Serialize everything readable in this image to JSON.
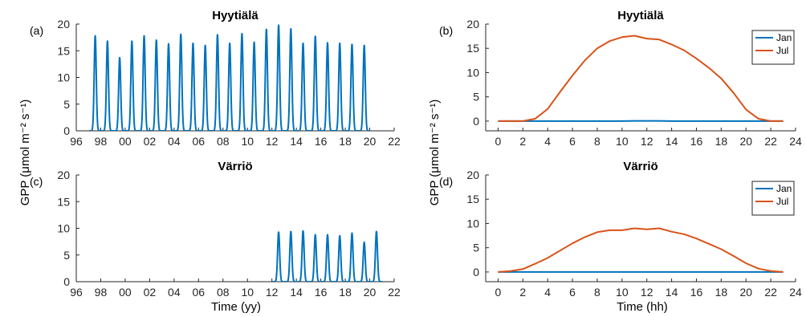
{
  "figure": {
    "ylabel_left": "GPP (μmol m⁻² s⁻¹)",
    "ylabel_right": "GPP (μmol m⁻² s⁻¹)",
    "xlabel_left": "Time (yy)",
    "xlabel_right": "Time (hh)"
  },
  "chart_data": [
    {
      "id": "a",
      "panel_letter": "(a)",
      "title": "Hyytiälä",
      "type": "line",
      "xlabel": "",
      "ylabel": "",
      "xlim": [
        1996,
        2022
      ],
      "ylim": [
        0,
        20
      ],
      "xticks": [
        1996,
        1998,
        2000,
        2002,
        2004,
        2006,
        2008,
        2010,
        2012,
        2014,
        2016,
        2018,
        2020,
        2022
      ],
      "xticklabels": [
        "96",
        "98",
        "00",
        "02",
        "04",
        "06",
        "08",
        "10",
        "12",
        "14",
        "16",
        "18",
        "20",
        "22"
      ],
      "yticks": [
        0,
        5,
        10,
        15,
        20
      ],
      "series": [
        {
          "color": "#0072BD",
          "seasonal_years": [
            1997,
            1998,
            1999,
            2000,
            2001,
            2002,
            2003,
            2004,
            2005,
            2006,
            2007,
            2008,
            2009,
            2010,
            2011,
            2012,
            2013,
            2014,
            2015,
            2016,
            2017,
            2018,
            2019
          ],
          "seasonal_peaks": [
            17.8,
            16.8,
            13.7,
            16.8,
            17.8,
            17.0,
            16.3,
            18.1,
            16.4,
            16.0,
            18.0,
            16.4,
            18.2,
            16.6,
            19.0,
            19.8,
            19.1,
            16.4,
            17.7,
            16.5,
            16.4,
            16.2,
            16.0
          ]
        }
      ]
    },
    {
      "id": "b",
      "panel_letter": "(b)",
      "title": "Hyytiälä",
      "type": "line",
      "xlabel": "",
      "ylabel": "",
      "xlim": [
        -1,
        24
      ],
      "ylim": [
        -2,
        20
      ],
      "xticks": [
        0,
        2,
        4,
        6,
        8,
        10,
        12,
        14,
        16,
        18,
        20,
        22,
        24
      ],
      "yticks": [
        0,
        5,
        10,
        15,
        20
      ],
      "legend": "top-right",
      "x": [
        0,
        1,
        2,
        3,
        4,
        5,
        6,
        7,
        8,
        9,
        10,
        11,
        12,
        13,
        14,
        15,
        16,
        17,
        18,
        19,
        20,
        21,
        22,
        23
      ],
      "series": [
        {
          "name": "Jan",
          "color": "#0072BD",
          "values": [
            0,
            0,
            0,
            0,
            0,
            0,
            0,
            0,
            0,
            0,
            0,
            0.05,
            0.05,
            0.05,
            0,
            0,
            0,
            0,
            0,
            0,
            0,
            0,
            0,
            0
          ]
        },
        {
          "name": "Jul",
          "color": "#D95319",
          "values": [
            0,
            0,
            0,
            0.5,
            2.5,
            6.0,
            9.4,
            12.5,
            15.0,
            16.5,
            17.3,
            17.6,
            17.0,
            16.8,
            15.8,
            14.6,
            12.9,
            11.0,
            8.8,
            5.8,
            2.4,
            0.5,
            0,
            0
          ]
        }
      ]
    },
    {
      "id": "c",
      "panel_letter": "(c)",
      "title": "Värriö",
      "type": "line",
      "xlabel": "Time (yy)",
      "ylabel": "",
      "xlim": [
        1996,
        2022
      ],
      "ylim": [
        0,
        20
      ],
      "xticks": [
        1996,
        1998,
        2000,
        2002,
        2004,
        2006,
        2008,
        2010,
        2012,
        2014,
        2016,
        2018,
        2020,
        2022
      ],
      "xticklabels": [
        "96",
        "98",
        "00",
        "02",
        "04",
        "06",
        "08",
        "10",
        "12",
        "14",
        "16",
        "18",
        "20",
        "22"
      ],
      "yticks": [
        0,
        5,
        10,
        15,
        20
      ],
      "series": [
        {
          "color": "#0072BD",
          "seasonal_years": [
            2012,
            2013,
            2014,
            2015,
            2016,
            2017,
            2018,
            2019,
            2020
          ],
          "seasonal_peaks": [
            9.3,
            9.4,
            9.5,
            8.8,
            8.8,
            8.6,
            9.1,
            7.4,
            9.4
          ]
        }
      ]
    },
    {
      "id": "d",
      "panel_letter": "(d)",
      "title": "Värriö",
      "type": "line",
      "xlabel": "Time (hh)",
      "ylabel": "",
      "xlim": [
        -1,
        24
      ],
      "ylim": [
        -2,
        20
      ],
      "xticks": [
        0,
        2,
        4,
        6,
        8,
        10,
        12,
        14,
        16,
        18,
        20,
        22,
        24
      ],
      "yticks": [
        0,
        5,
        10,
        15,
        20
      ],
      "legend": "top-right",
      "x": [
        0,
        1,
        2,
        3,
        4,
        5,
        6,
        7,
        8,
        9,
        10,
        11,
        12,
        13,
        14,
        15,
        16,
        17,
        18,
        19,
        20,
        21,
        22,
        23
      ],
      "series": [
        {
          "name": "Jan",
          "color": "#0072BD",
          "values": [
            0,
            0,
            0,
            0,
            0,
            0,
            0,
            0,
            0,
            0,
            0,
            0,
            0,
            0,
            0,
            0,
            0,
            0,
            0,
            0,
            0,
            0,
            0,
            0
          ]
        },
        {
          "name": "Jul",
          "color": "#D95319",
          "values": [
            0,
            0.2,
            0.6,
            1.7,
            2.9,
            4.4,
            5.9,
            7.2,
            8.2,
            8.6,
            8.6,
            9.0,
            8.8,
            9.0,
            8.3,
            7.8,
            6.9,
            5.8,
            4.7,
            3.3,
            1.8,
            0.7,
            0.2,
            0
          ]
        }
      ]
    }
  ]
}
